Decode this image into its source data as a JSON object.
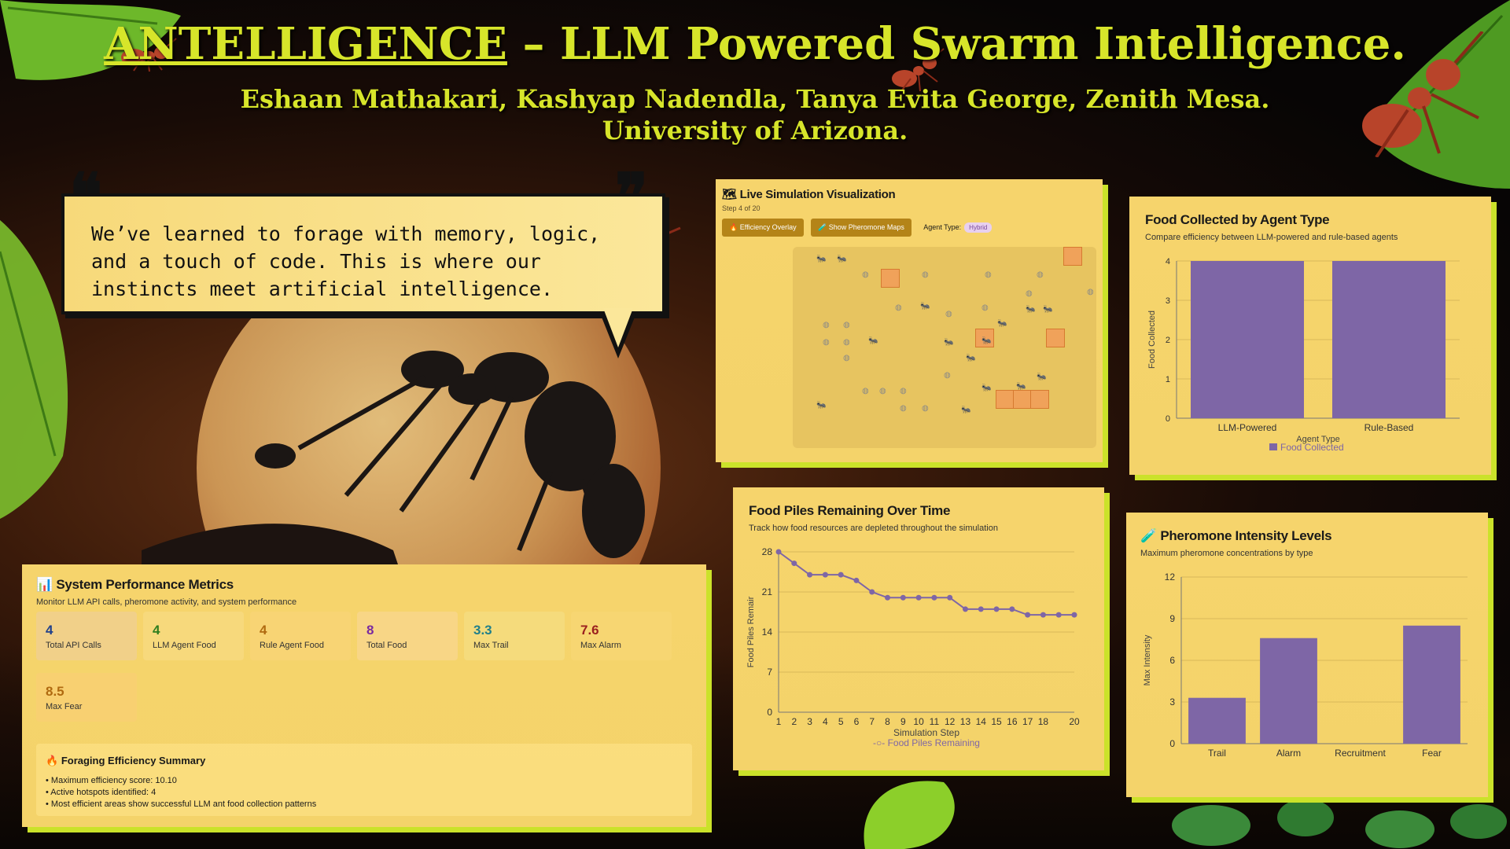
{
  "header": {
    "title_prefix": "ANTELLIGENCE",
    "title_rest": " – LLM Powered Swarm Intelligence.",
    "authors": "Eshaan Mathakari, Kashyap Nadendla, Tanya Evita George, Zenith Mesa.",
    "affiliation": "University of Arizona."
  },
  "quote": {
    "lines": [
      "We’ve learned to forage with memory, logic,",
      "and a touch of code. This is where our",
      "instincts meet artificial intelligence."
    ]
  },
  "simulation": {
    "title": "Live Simulation Visualization",
    "icon": "map-icon",
    "step": "Step 4 of 20",
    "buttons": {
      "efficiency": "Efficiency Overlay",
      "pheromone": "Show Pheromone Maps"
    },
    "agent_type_label": "Agent Type:",
    "agent_type_value": "Hybrid"
  },
  "metrics": {
    "title": "System Performance Metrics",
    "icon": "bar-chart-icon",
    "subtitle": "Monitor LLM API calls, pheromone activity, and system performance",
    "cards": [
      {
        "value": "4",
        "label": "Total API Calls",
        "color": "#1f3f8a",
        "bg": "#f1d089"
      },
      {
        "value": "4",
        "label": "LLM Agent Food",
        "color": "#2e7d1e",
        "bg": "#f7d97c"
      },
      {
        "value": "4",
        "label": "Rule Agent Food",
        "color": "#b06a10",
        "bg": "#f8d474"
      },
      {
        "value": "8",
        "label": "Total Food",
        "color": "#7a2aa0",
        "bg": "#f8d686"
      },
      {
        "value": "3.3",
        "label": "Max Trail",
        "color": "#1f7f8a",
        "bg": "#f5db7c"
      },
      {
        "value": "7.6",
        "label": "Max Alarm",
        "color": "#9a1f1f",
        "bg": "#f7d672"
      },
      {
        "value": "8.5",
        "label": "Max Fear",
        "color": "#b06a10",
        "bg": "#f8d071"
      }
    ],
    "summary": {
      "title": "Foraging Efficiency Summary",
      "icon": "fire-icon",
      "lines": [
        "• Maximum efficiency score: 10.10",
        "• Active hotspots identified: 4",
        "• Most efficient areas show successful LLM ant food collection patterns"
      ]
    }
  },
  "bar_chart_agent": {
    "title": "Food Collected by Agent Type",
    "subtitle": "Compare efficiency between LLM-powered and rule-based agents"
  },
  "line_chart_food": {
    "title": "Food Piles Remaining Over Time",
    "subtitle": "Track how food resources are depleted throughout the simulation"
  },
  "bar_chart_pheromone": {
    "title": "Pheromone Intensity Levels",
    "icon": "test-tube-icon",
    "subtitle": "Maximum pheromone concentrations by type"
  },
  "chart_data": [
    {
      "type": "bar",
      "title": "Food Collected by Agent Type",
      "categories": [
        "LLM-Powered",
        "Rule-Based"
      ],
      "series": [
        {
          "name": "Food Collected",
          "values": [
            4,
            4
          ]
        }
      ],
      "xlabel": "Agent Type",
      "ylabel": "Food Collected",
      "ylim": [
        0,
        4
      ],
      "yticks": [
        "0",
        "1",
        "2",
        "3",
        "4"
      ],
      "bar_color": "#7e66a6",
      "legend": "bottom"
    },
    {
      "type": "line",
      "title": "Food Piles Remaining Over Time",
      "x": [
        1,
        2,
        3,
        4,
        5,
        6,
        7,
        8,
        9,
        10,
        11,
        12,
        13,
        14,
        15,
        16,
        17,
        18,
        19,
        20
      ],
      "xticks": [
        "1",
        "2",
        "3",
        "4",
        "5",
        "6",
        "7",
        "8",
        "9",
        "10",
        "11",
        "12",
        "13",
        "14",
        "15",
        "16",
        "17",
        "18",
        "20"
      ],
      "series": [
        {
          "name": "Food Piles Remaining",
          "values": [
            28,
            26,
            24,
            24,
            24,
            23,
            21,
            20,
            20,
            20,
            20,
            20,
            18,
            18,
            18,
            18,
            17,
            17,
            17,
            17
          ]
        }
      ],
      "xlabel": "Simulation Step",
      "ylabel": "Food Piles Remair",
      "ylim": [
        0,
        28
      ],
      "yticks": [
        "0",
        "7",
        "14",
        "21",
        "28"
      ],
      "line_color": "#7e66a6",
      "legend": "bottom"
    },
    {
      "type": "bar",
      "title": "Pheromone Intensity Levels",
      "categories": [
        "Trail",
        "Alarm",
        "Recruitment",
        "Fear"
      ],
      "series": [
        {
          "name": "",
          "values": [
            3.3,
            7.6,
            0,
            8.5
          ]
        }
      ],
      "ylabel": "Max Intensity",
      "ylim": [
        0,
        12
      ],
      "yticks": [
        "0",
        "3",
        "6",
        "9",
        "12"
      ],
      "bar_color": "#7e66a6"
    }
  ]
}
